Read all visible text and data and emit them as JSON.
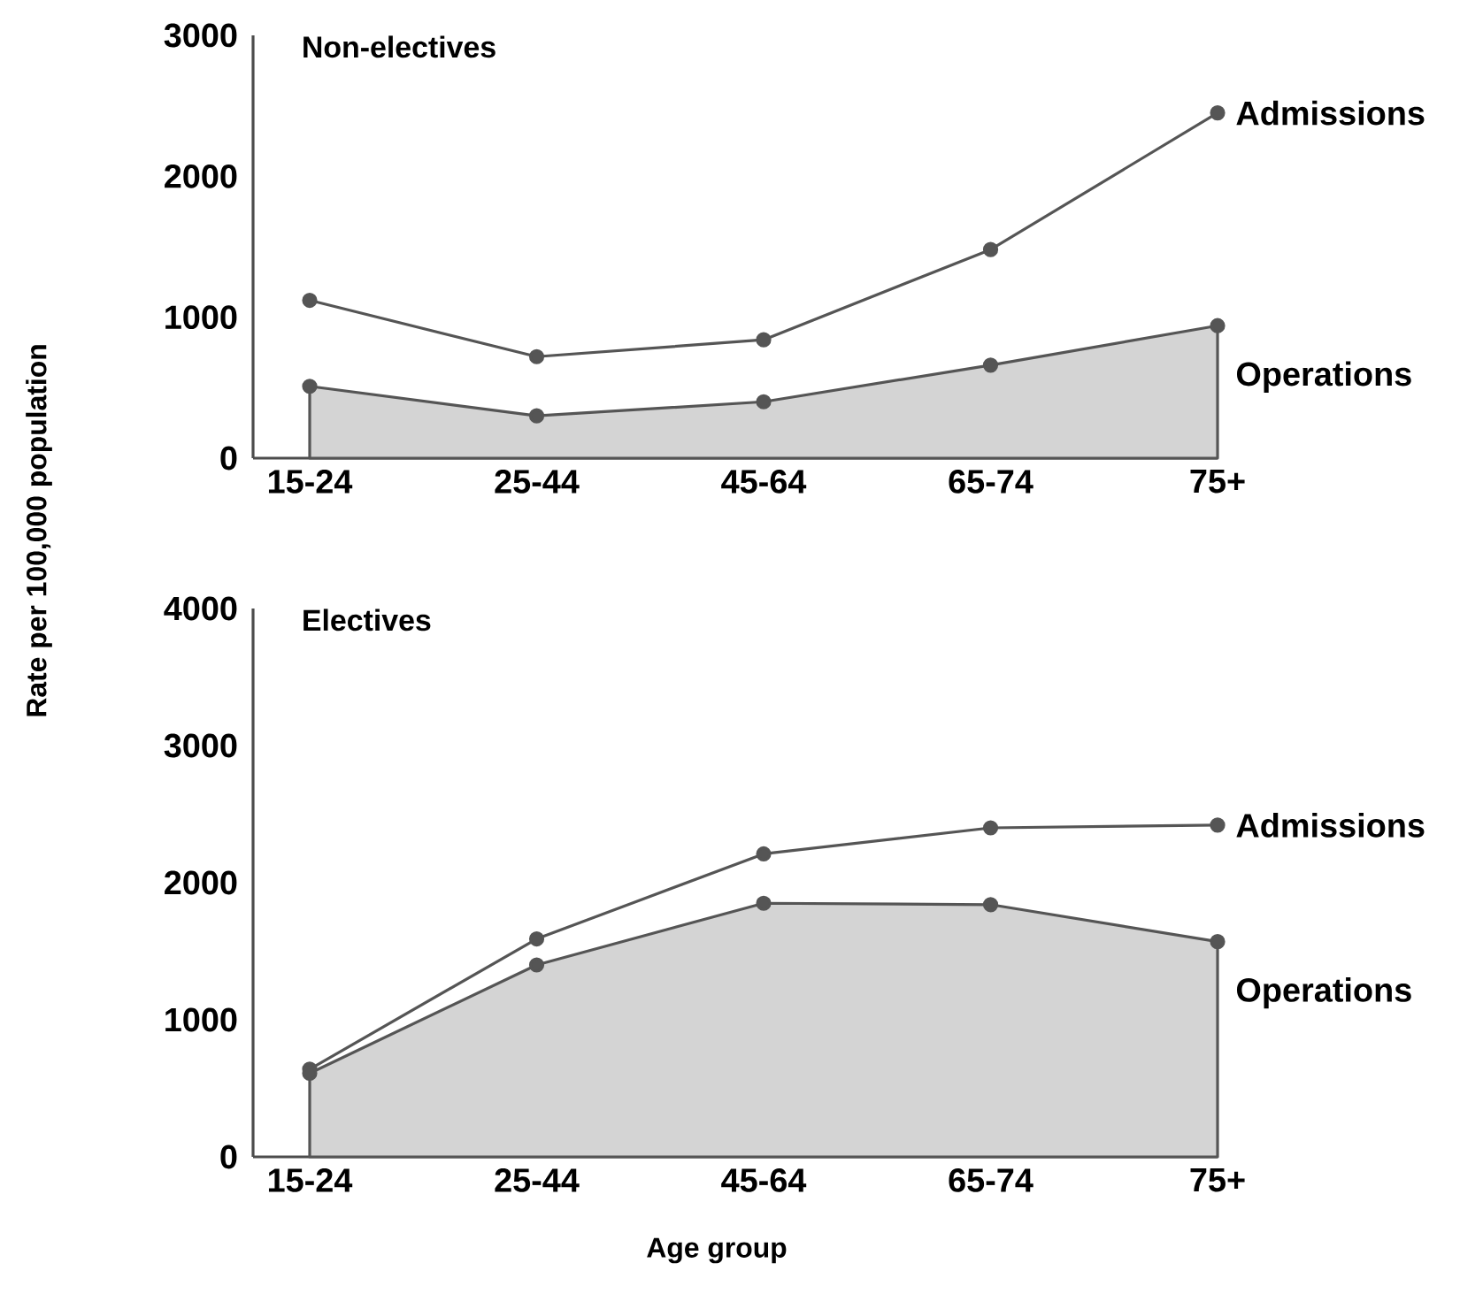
{
  "chart_data": [
    {
      "type": "line",
      "title": "Non-electives",
      "ylabel": "Rate per 100,000 population",
      "categories": [
        "15-24",
        "25-44",
        "45-64",
        "65-74",
        "75+"
      ],
      "ylim": [
        0,
        3000
      ],
      "yticks": [
        0,
        1000,
        2000,
        3000
      ],
      "marker": "circle",
      "line_style": "solid",
      "series": [
        {
          "name": "Admissions",
          "color": "#555555",
          "values": [
            1120,
            720,
            840,
            1480,
            2450
          ]
        },
        {
          "name": "Operations",
          "type": "area",
          "color": "#555555",
          "values": [
            510,
            300,
            400,
            660,
            940
          ]
        }
      ]
    },
    {
      "type": "line",
      "title": "Electives",
      "xlabel": "Age group",
      "categories": [
        "15-24",
        "25-44",
        "45-64",
        "65-74",
        "75+"
      ],
      "ylim": [
        0,
        4000
      ],
      "yticks": [
        0,
        1000,
        2000,
        3000,
        4000
      ],
      "marker": "circle",
      "line_style": "solid",
      "series": [
        {
          "name": "Admissions",
          "color": "#555555",
          "values": [
            640,
            1590,
            2210,
            2400,
            2420
          ]
        },
        {
          "name": "Operations",
          "type": "area",
          "color": "#555555",
          "values": [
            610,
            1400,
            1850,
            1840,
            1570
          ]
        }
      ]
    }
  ]
}
